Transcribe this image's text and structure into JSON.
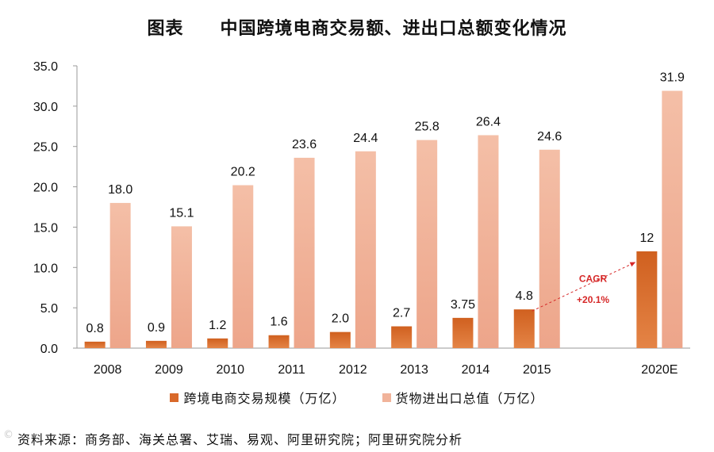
{
  "title": "图表　　中国跨境电商交易额、进出口总额变化情况",
  "colors": {
    "series1": "#d9692a",
    "series2": "#f1b39a",
    "cagr": "#d62828"
  },
  "chart_data": {
    "type": "bar",
    "categories": [
      "2008",
      "2009",
      "2010",
      "2011",
      "2012",
      "2013",
      "2014",
      "2015",
      "",
      "2020E"
    ],
    "series": [
      {
        "name": "跨境电商交易规模（万亿）",
        "values": [
          0.8,
          0.9,
          1.2,
          1.6,
          2.0,
          2.7,
          3.75,
          4.8,
          null,
          12
        ],
        "labels": [
          "0.8",
          "0.9",
          "1.2",
          "1.6",
          "2.0",
          "2.7",
          "3.75",
          "4.8",
          "",
          "12"
        ]
      },
      {
        "name": "货物进出口总值（万亿）",
        "values": [
          18.0,
          15.1,
          20.2,
          23.6,
          24.4,
          25.8,
          26.4,
          24.6,
          null,
          31.9
        ],
        "labels": [
          "18.0",
          "15.1",
          "20.2",
          "23.6",
          "24.4",
          "25.8",
          "26.4",
          "24.6",
          "",
          "31.9"
        ]
      }
    ],
    "ylim": [
      0,
      35
    ],
    "yticks": [
      "0.0",
      "5.0",
      "10.0",
      "15.0",
      "20.0",
      "25.0",
      "30.0",
      "35.0"
    ],
    "xlabel": "",
    "ylabel": "",
    "annotation": {
      "text_line1": "CAGR",
      "text_line2": "+20.1%",
      "from_category": "2015",
      "to_category": "2020E",
      "from_value": 4.8,
      "to_value": 12
    },
    "legend": "bottom"
  },
  "source": "资料来源：商务部、海关总署、艾瑞、易观、阿里研究院；阿里研究院分析",
  "watermark": "©"
}
